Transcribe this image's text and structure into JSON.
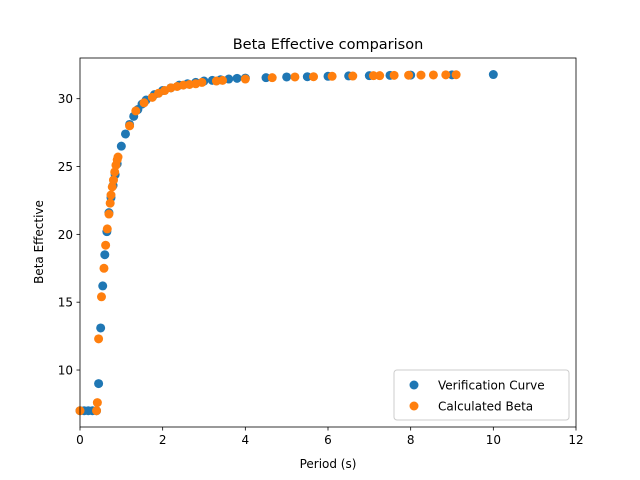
{
  "chart_data": {
    "type": "scatter",
    "title": "Beta Effective comparison",
    "xlabel": "Period (s)",
    "ylabel": "Beta Effective",
    "xlim": [
      0,
      12
    ],
    "ylim": [
      5.8,
      33.0
    ],
    "xticks": [
      0,
      2,
      4,
      6,
      8,
      10,
      12
    ],
    "yticks": [
      10,
      15,
      20,
      25,
      30
    ],
    "grid": false,
    "legend_position": "lower-right",
    "series": [
      {
        "name": "Verification Curve",
        "color": "#1f77b4",
        "points": [
          [
            0.0,
            7.0
          ],
          [
            0.1,
            7.0
          ],
          [
            0.2,
            7.0
          ],
          [
            0.3,
            7.0
          ],
          [
            0.4,
            7.0
          ],
          [
            0.45,
            9.0
          ],
          [
            0.5,
            13.1
          ],
          [
            0.55,
            16.2
          ],
          [
            0.6,
            18.5
          ],
          [
            0.65,
            20.2
          ],
          [
            0.7,
            21.6
          ],
          [
            0.75,
            22.7
          ],
          [
            0.8,
            23.6
          ],
          [
            0.85,
            24.4
          ],
          [
            0.9,
            25.2
          ],
          [
            1.0,
            26.5
          ],
          [
            1.1,
            27.4
          ],
          [
            1.2,
            28.1
          ],
          [
            1.3,
            28.7
          ],
          [
            1.4,
            29.2
          ],
          [
            1.5,
            29.6
          ],
          [
            1.6,
            29.9
          ],
          [
            1.8,
            30.3
          ],
          [
            2.0,
            30.6
          ],
          [
            2.2,
            30.8
          ],
          [
            2.4,
            31.0
          ],
          [
            2.6,
            31.1
          ],
          [
            2.8,
            31.2
          ],
          [
            3.0,
            31.3
          ],
          [
            3.2,
            31.35
          ],
          [
            3.4,
            31.4
          ],
          [
            3.6,
            31.45
          ],
          [
            3.8,
            31.5
          ],
          [
            4.0,
            31.52
          ],
          [
            4.5,
            31.55
          ],
          [
            5.0,
            31.6
          ],
          [
            5.5,
            31.62
          ],
          [
            6.0,
            31.65
          ],
          [
            6.5,
            31.68
          ],
          [
            7.0,
            31.7
          ],
          [
            7.5,
            31.72
          ],
          [
            8.0,
            31.74
          ],
          [
            9.0,
            31.76
          ],
          [
            10.0,
            31.78
          ]
        ]
      },
      {
        "name": "Calculated Beta",
        "color": "#ff7f0e",
        "points": [
          [
            0.0,
            7.0
          ],
          [
            0.4,
            7.0
          ],
          [
            0.42,
            7.6
          ],
          [
            0.45,
            12.3
          ],
          [
            0.52,
            15.4
          ],
          [
            0.58,
            17.5
          ],
          [
            0.62,
            19.2
          ],
          [
            0.66,
            20.4
          ],
          [
            0.7,
            21.5
          ],
          [
            0.73,
            22.3
          ],
          [
            0.75,
            22.9
          ],
          [
            0.78,
            23.5
          ],
          [
            0.81,
            24.0
          ],
          [
            0.84,
            24.6
          ],
          [
            0.87,
            25.1
          ],
          [
            0.9,
            25.5
          ],
          [
            0.92,
            25.7
          ],
          [
            1.2,
            28.0
          ],
          [
            1.35,
            29.1
          ],
          [
            1.55,
            29.7
          ],
          [
            1.75,
            30.1
          ],
          [
            1.9,
            30.4
          ],
          [
            2.05,
            30.6
          ],
          [
            2.2,
            30.8
          ],
          [
            2.35,
            30.9
          ],
          [
            2.5,
            31.0
          ],
          [
            2.65,
            31.05
          ],
          [
            2.8,
            31.1
          ],
          [
            2.95,
            31.2
          ],
          [
            3.3,
            31.3
          ],
          [
            3.45,
            31.35
          ],
          [
            4.0,
            31.45
          ],
          [
            4.65,
            31.55
          ],
          [
            5.2,
            31.6
          ],
          [
            5.65,
            31.62
          ],
          [
            6.1,
            31.65
          ],
          [
            6.6,
            31.67
          ],
          [
            7.1,
            31.7
          ],
          [
            7.25,
            31.7
          ],
          [
            7.6,
            31.72
          ],
          [
            7.95,
            31.73
          ],
          [
            8.25,
            31.74
          ],
          [
            8.55,
            31.75
          ],
          [
            8.85,
            31.76
          ],
          [
            9.1,
            31.77
          ]
        ]
      }
    ]
  }
}
